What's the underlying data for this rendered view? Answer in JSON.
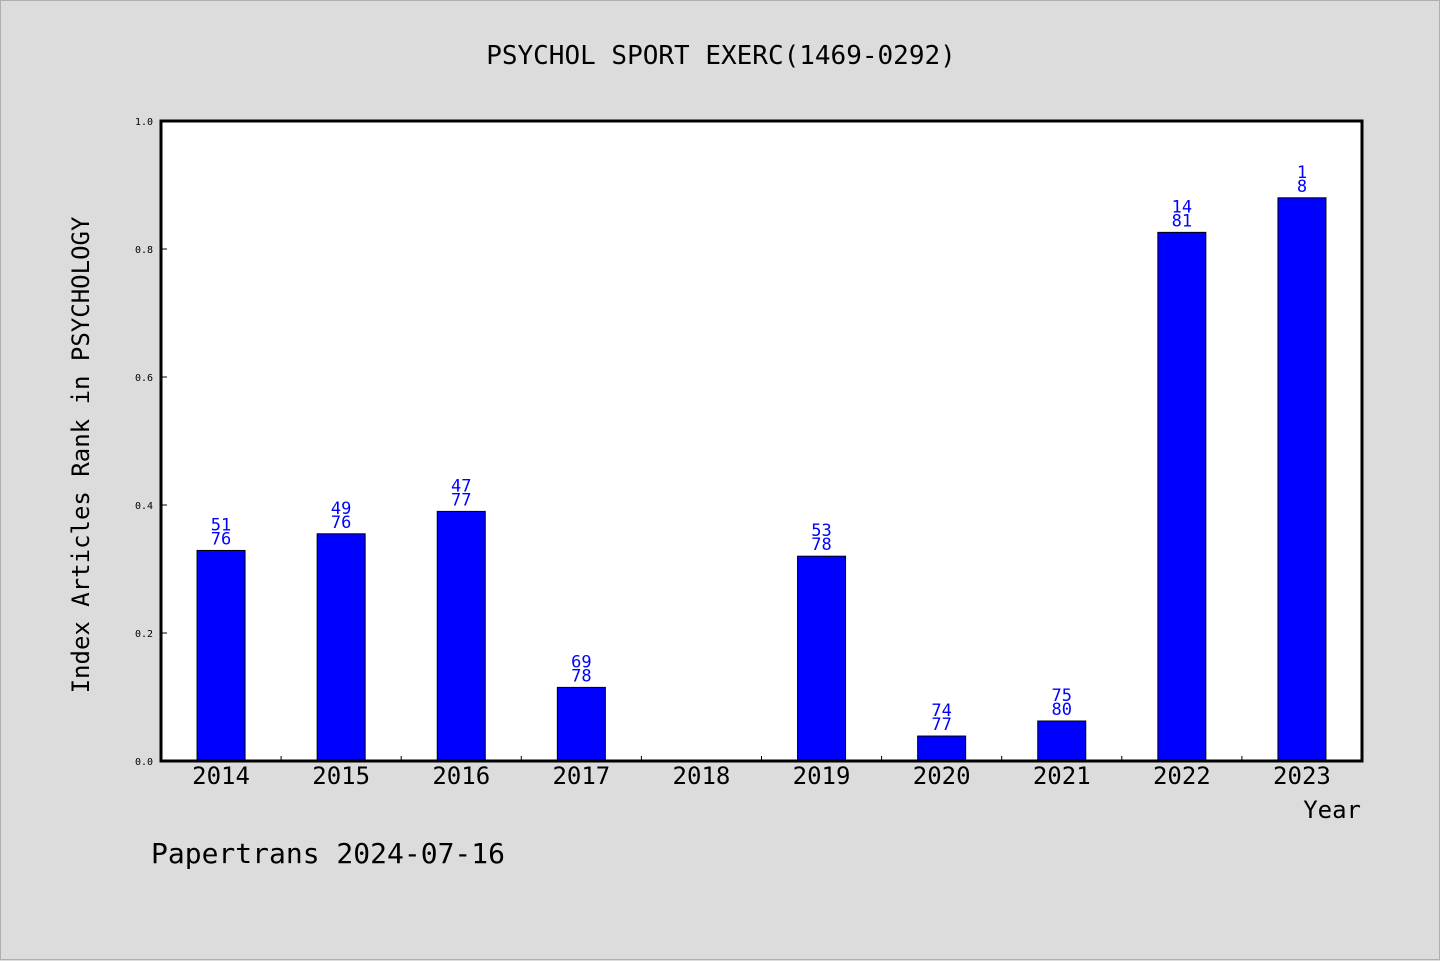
{
  "chart_data": {
    "type": "bar",
    "title": "PSYCHOL SPORT EXERC(1469-0292)",
    "xlabel": "Year",
    "ylabel": "Index Articles Rank in PSYCHOLOGY",
    "ylim": [
      0,
      1.0
    ],
    "yticks": [
      "0.0",
      "0.2",
      "0.4",
      "0.6",
      "0.8",
      "1.0"
    ],
    "grid": false,
    "bar_color": "#0000ff",
    "label_color": "#0000cc",
    "categories": [
      "2014",
      "2015",
      "2016",
      "2017",
      "2018",
      "2019",
      "2020",
      "2021",
      "2022",
      "2023"
    ],
    "values": [
      0.329,
      0.355,
      0.39,
      0.115,
      null,
      0.32,
      0.039,
      0.0625,
      0.826,
      0.88
    ],
    "labels": [
      [
        "51",
        "76"
      ],
      [
        "49",
        "76"
      ],
      [
        "47",
        "77"
      ],
      [
        "69",
        "78"
      ],
      null,
      [
        "53",
        "78"
      ],
      [
        "74",
        "77"
      ],
      [
        "75",
        "80"
      ],
      [
        "14",
        "81"
      ],
      [
        "1",
        "8"
      ]
    ]
  },
  "footer": {
    "text": "Papertrans 2024-07-16"
  }
}
